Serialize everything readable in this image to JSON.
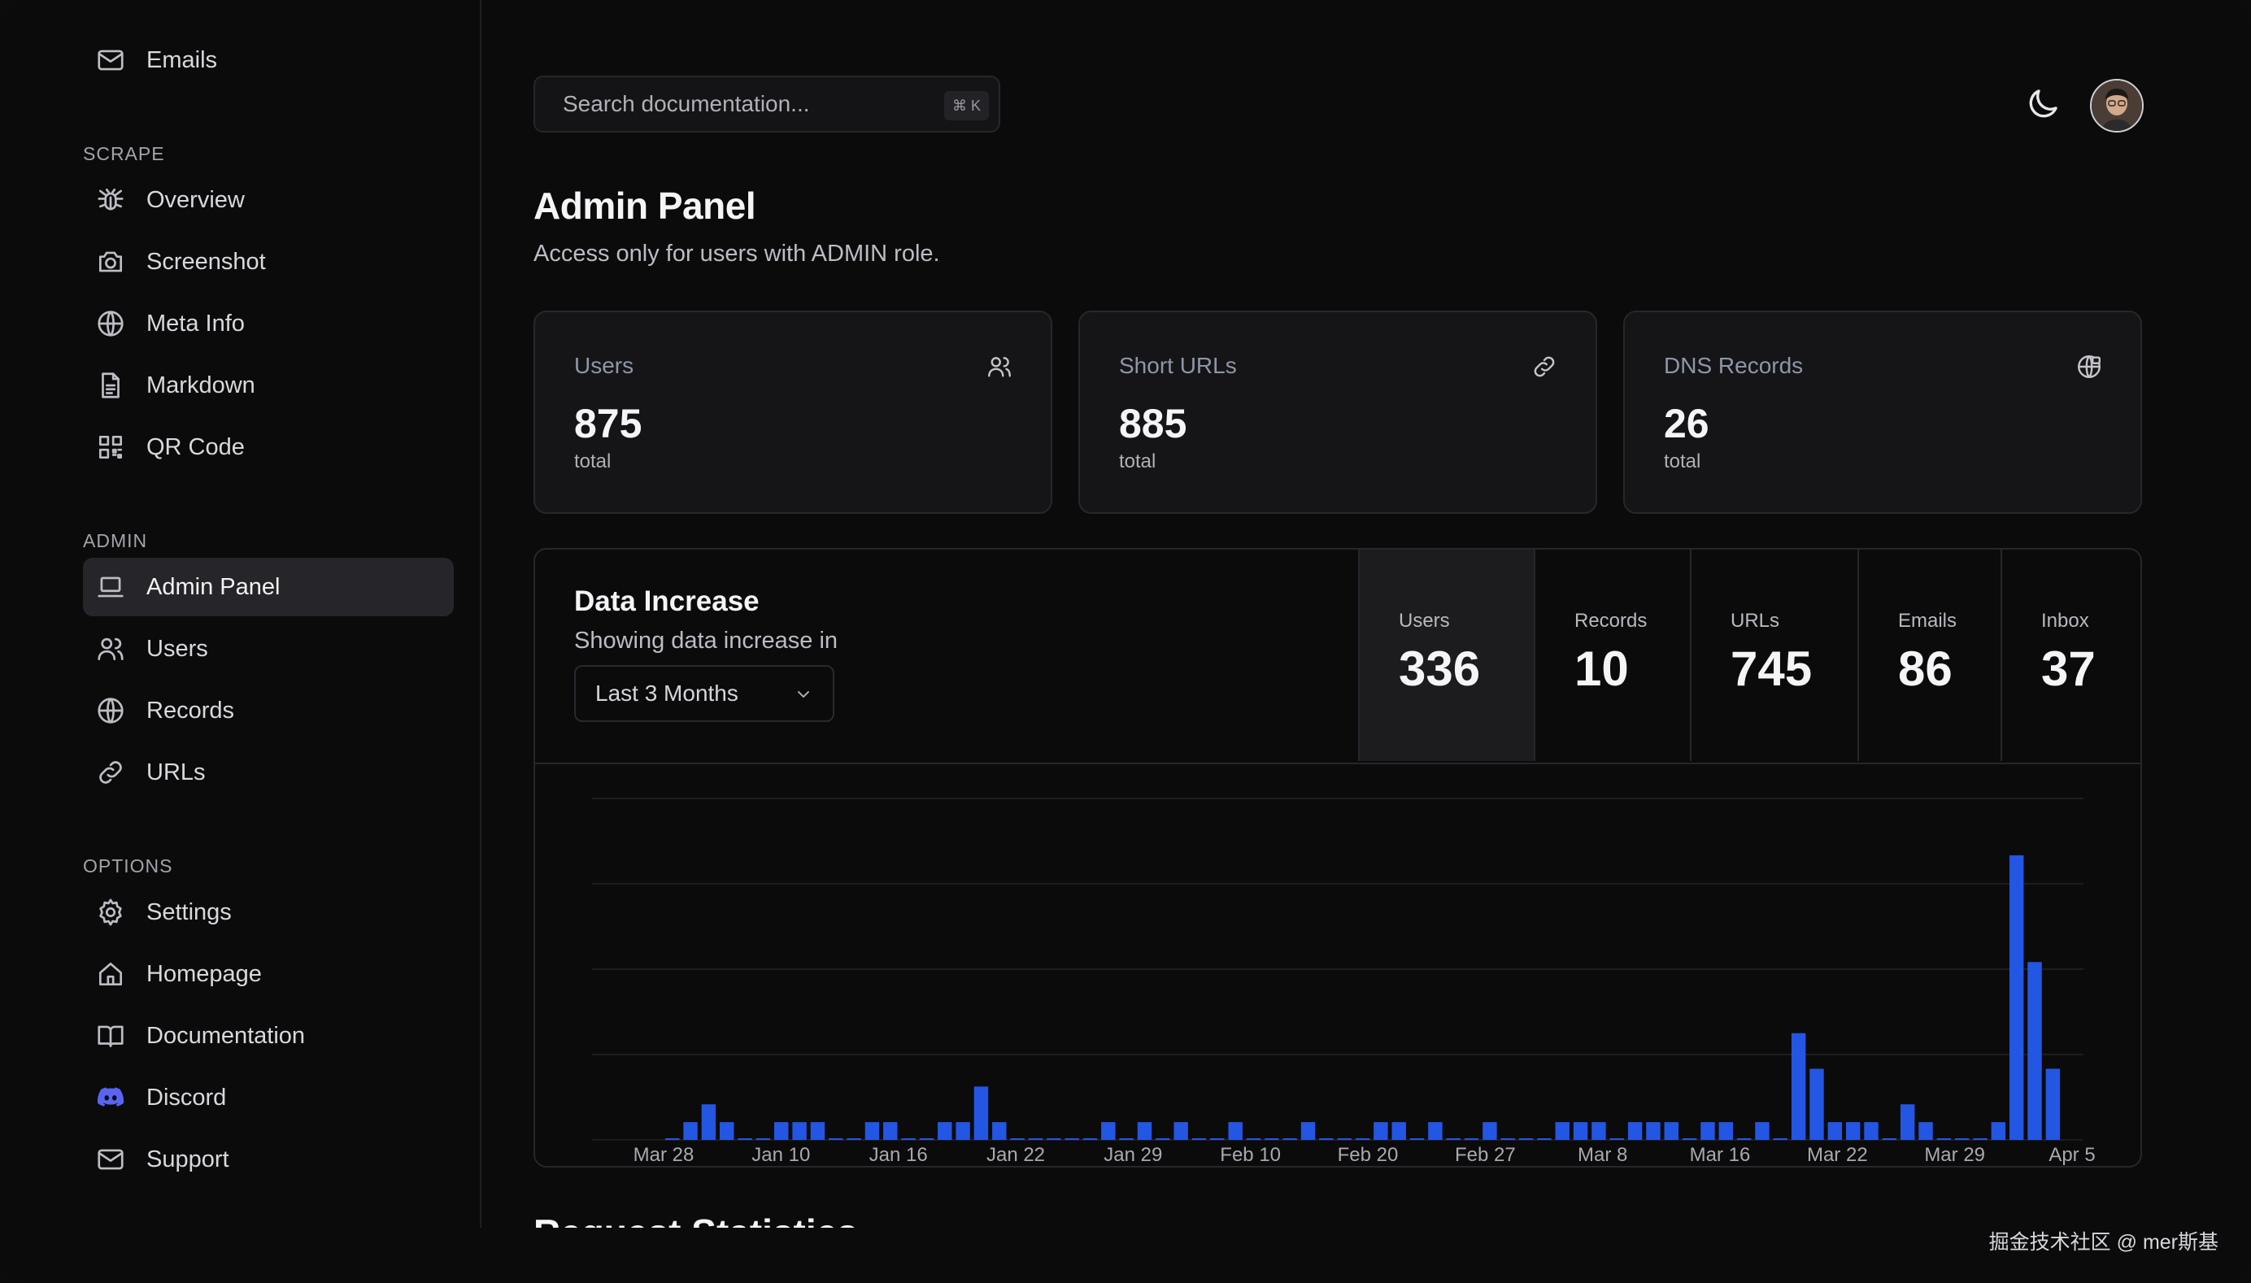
{
  "sidebar": {
    "top_item": {
      "label": "Emails",
      "icon": "mail-icon"
    },
    "sections": [
      {
        "title": "SCRAPE",
        "items": [
          {
            "label": "Overview",
            "icon": "bug-icon"
          },
          {
            "label": "Screenshot",
            "icon": "camera-icon"
          },
          {
            "label": "Meta Info",
            "icon": "globe-icon"
          },
          {
            "label": "Markdown",
            "icon": "file-text-icon"
          },
          {
            "label": "QR Code",
            "icon": "qr-code-icon"
          }
        ]
      },
      {
        "title": "ADMIN",
        "items": [
          {
            "label": "Admin Panel",
            "icon": "laptop-icon",
            "active": true
          },
          {
            "label": "Users",
            "icon": "users-icon"
          },
          {
            "label": "Records",
            "icon": "globe-icon"
          },
          {
            "label": "URLs",
            "icon": "link-icon"
          }
        ]
      },
      {
        "title": "OPTIONS",
        "items": [
          {
            "label": "Settings",
            "icon": "gear-icon"
          },
          {
            "label": "Homepage",
            "icon": "home-icon"
          },
          {
            "label": "Documentation",
            "icon": "book-icon"
          },
          {
            "label": "Discord",
            "icon": "discord-icon"
          },
          {
            "label": "Support",
            "icon": "mail-icon"
          }
        ]
      }
    ]
  },
  "search": {
    "placeholder": "Search documentation...",
    "shortcut": "⌘ K"
  },
  "header": {
    "theme_icon": "moon-icon",
    "avatar": "avatar"
  },
  "page": {
    "title": "Admin Panel",
    "subtitle": "Access only for users with ADMIN role."
  },
  "stats": [
    {
      "label": "Users",
      "value": "875",
      "sub": "total",
      "icon": "users-icon"
    },
    {
      "label": "Short URLs",
      "value": "885",
      "sub": "total",
      "icon": "link-icon"
    },
    {
      "label": "DNS Records",
      "value": "26",
      "sub": "total",
      "icon": "globe-lock-icon"
    }
  ],
  "data_increase": {
    "title": "Data Increase",
    "description": "Showing data increase in",
    "range": "Last 3 Months",
    "metrics": [
      {
        "label": "Users",
        "value": "336",
        "active": true
      },
      {
        "label": "Records",
        "value": "10"
      },
      {
        "label": "URLs",
        "value": "745"
      },
      {
        "label": "Emails",
        "value": "86"
      },
      {
        "label": "Inbox",
        "value": "37"
      }
    ]
  },
  "chart_data": {
    "type": "bar",
    "series": [
      {
        "values": [
          0,
          1,
          2,
          1,
          0,
          0,
          1,
          1,
          1,
          0,
          0,
          1,
          1,
          0,
          0,
          1,
          1,
          3,
          1,
          0,
          0,
          0,
          0,
          0,
          1,
          0,
          1,
          0,
          1,
          0,
          0,
          1,
          0,
          0,
          0,
          1,
          0,
          0,
          0,
          1,
          1,
          0,
          1,
          0,
          0,
          1,
          0,
          0,
          0,
          1,
          1,
          1,
          0,
          1,
          1,
          1,
          0,
          1,
          1,
          0,
          1,
          0,
          6,
          4,
          1,
          1,
          1,
          0,
          2,
          1,
          0,
          0,
          0,
          1,
          16,
          10,
          4
        ]
      }
    ],
    "tick_labels": [
      "Mar 28",
      "Jan 10",
      "Jan 16",
      "Jan 22",
      "Jan 29",
      "Feb 10",
      "Feb 20",
      "Feb 27",
      "Mar 8",
      "Mar 16",
      "Mar 22",
      "Mar 29",
      "Apr 5"
    ],
    "color": "#2456e4",
    "grid": true
  },
  "next_section": {
    "title": "Request Statistics"
  },
  "watermark": "掘金技术社区 @ mer斯基"
}
